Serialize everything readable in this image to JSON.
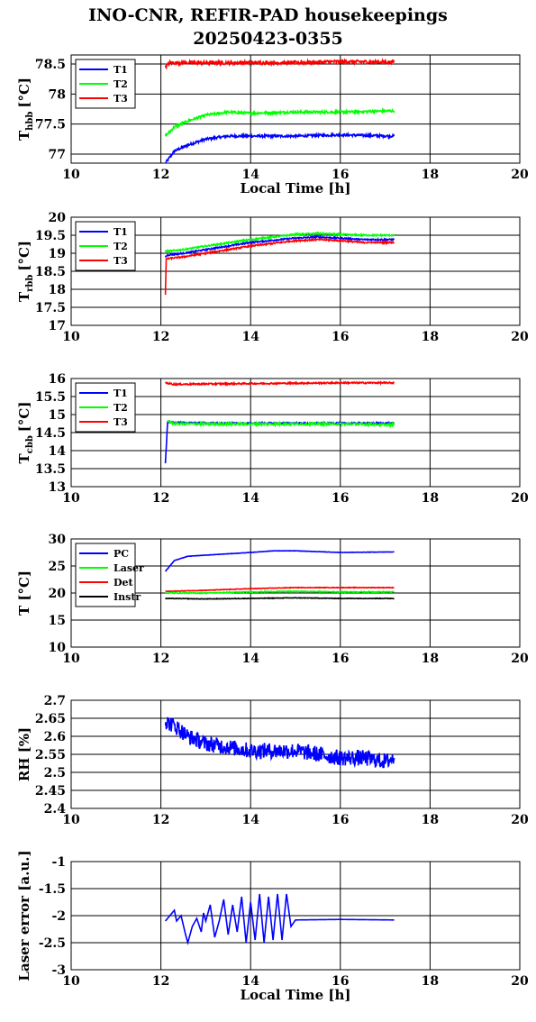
{
  "figure": {
    "title_line1": "INO-CNR, REFIR-PAD housekeepings",
    "title_line2": "20250423-0355"
  },
  "colors": {
    "blue": "#0000ff",
    "green": "#00ff00",
    "red": "#ff0000",
    "black": "#000000",
    "grid": "#000000"
  },
  "chart_data": [
    {
      "type": "line",
      "ylabel_main": "T",
      "ylabel_sub": "hbb",
      "ylabel_unit": "[°C]",
      "xlabel": "Local Time [h]",
      "xlim": [
        10,
        20
      ],
      "ylim": [
        76.85,
        78.65
      ],
      "xticks": [
        10,
        12,
        14,
        16,
        18,
        20
      ],
      "yticks": [
        77,
        77.5,
        78,
        78.5
      ],
      "ytick_labels": [
        "77",
        "77.5",
        "78",
        "78.5"
      ],
      "grid": true,
      "legend": "top-left",
      "series": [
        {
          "name": "T1",
          "color": "blue",
          "noise": 0.02,
          "x": [
            12.1,
            12.3,
            12.6,
            13.0,
            13.5,
            14.0,
            15.0,
            16.0,
            17.2
          ],
          "y": [
            76.85,
            77.05,
            77.15,
            77.25,
            77.3,
            77.3,
            77.3,
            77.32,
            77.3
          ]
        },
        {
          "name": "T2",
          "color": "green",
          "noise": 0.02,
          "x": [
            12.1,
            12.3,
            12.6,
            13.0,
            13.5,
            14.0,
            15.0,
            16.0,
            17.2
          ],
          "y": [
            77.3,
            77.45,
            77.55,
            77.65,
            77.7,
            77.68,
            77.7,
            77.7,
            77.72
          ]
        },
        {
          "name": "T3",
          "color": "red",
          "noise": 0.03,
          "x": [
            12.1,
            12.2,
            13.0,
            14.0,
            15.0,
            16.0,
            17.2
          ],
          "y": [
            78.45,
            78.52,
            78.52,
            78.52,
            78.52,
            78.54,
            78.53
          ]
        }
      ]
    },
    {
      "type": "line",
      "ylabel_main": "T",
      "ylabel_sub": "rbb",
      "ylabel_unit": "[°C]",
      "xlabel": "",
      "xlim": [
        10,
        20
      ],
      "ylim": [
        17,
        20
      ],
      "xticks": [
        10,
        12,
        14,
        16,
        18,
        20
      ],
      "yticks": [
        17,
        17.5,
        18,
        18.5,
        19,
        19.5,
        20
      ],
      "ytick_labels": [
        "17",
        "17.5",
        "18",
        "18.5",
        "19",
        "19.5",
        "20"
      ],
      "grid": true,
      "legend": "top-left",
      "series": [
        {
          "name": "T1",
          "color": "blue",
          "noise": 0.02,
          "x": [
            12.1,
            12.15,
            12.5,
            13.0,
            14.0,
            15.0,
            15.5,
            16.0,
            16.5,
            17.2
          ],
          "y": [
            18.9,
            18.95,
            19.0,
            19.1,
            19.3,
            19.42,
            19.45,
            19.42,
            19.38,
            19.38
          ]
        },
        {
          "name": "T2",
          "color": "green",
          "noise": 0.02,
          "x": [
            12.1,
            12.5,
            13.0,
            14.0,
            15.0,
            15.5,
            16.0,
            16.5,
            17.2
          ],
          "y": [
            19.05,
            19.1,
            19.2,
            19.38,
            19.52,
            19.55,
            19.52,
            19.5,
            19.5
          ]
        },
        {
          "name": "T3",
          "color": "red",
          "noise": 0.02,
          "x": [
            12.1,
            12.12,
            12.15,
            12.5,
            13.0,
            14.0,
            15.0,
            15.5,
            16.0,
            16.5,
            17.2
          ],
          "y": [
            17.85,
            18.85,
            18.85,
            18.9,
            19.0,
            19.2,
            19.35,
            19.38,
            19.35,
            19.3,
            19.3
          ]
        }
      ]
    },
    {
      "type": "line",
      "ylabel_main": "T",
      "ylabel_sub": "cbb",
      "ylabel_unit": "[°C]",
      "xlabel": "",
      "xlim": [
        10,
        20
      ],
      "ylim": [
        13,
        16
      ],
      "xticks": [
        10,
        12,
        14,
        16,
        18,
        20
      ],
      "yticks": [
        13,
        13.5,
        14,
        14.5,
        15,
        15.5,
        16
      ],
      "ytick_labels": [
        "13",
        "13.5",
        "14",
        "14.5",
        "15",
        "15.5",
        "16"
      ],
      "grid": true,
      "legend": "top-left",
      "series": [
        {
          "name": "T1",
          "color": "blue",
          "noise": 0.02,
          "x": [
            12.1,
            12.15,
            12.3,
            13.0,
            14.0,
            15.0,
            16.0,
            17.2
          ],
          "y": [
            13.65,
            14.8,
            14.78,
            14.76,
            14.76,
            14.76,
            14.76,
            14.76
          ]
        },
        {
          "name": "T2",
          "color": "green",
          "noise": 0.03,
          "x": [
            12.15,
            12.3,
            13.0,
            14.0,
            15.0,
            16.0,
            17.2
          ],
          "y": [
            14.82,
            14.75,
            14.74,
            14.74,
            14.74,
            14.74,
            14.72
          ]
        },
        {
          "name": "T3",
          "color": "red",
          "noise": 0.02,
          "x": [
            12.1,
            12.3,
            13.0,
            14.0,
            15.0,
            16.0,
            17.2
          ],
          "y": [
            15.88,
            15.84,
            15.85,
            15.86,
            15.87,
            15.88,
            15.88
          ]
        }
      ]
    },
    {
      "type": "line",
      "ylabel_main": "T [°C]",
      "ylabel_sub": "",
      "ylabel_unit": "",
      "xlabel": "",
      "xlim": [
        10,
        20
      ],
      "ylim": [
        10,
        30
      ],
      "xticks": [
        10,
        12,
        14,
        16,
        18,
        20
      ],
      "yticks": [
        10,
        15,
        20,
        25,
        30
      ],
      "ytick_labels": [
        "10",
        "15",
        "20",
        "25",
        "30"
      ],
      "grid": true,
      "legend": "top-left",
      "series": [
        {
          "name": "PC",
          "color": "blue",
          "noise": 0.03,
          "x": [
            12.1,
            12.3,
            12.6,
            13.0,
            14.0,
            14.5,
            15.0,
            16.0,
            17.2
          ],
          "y": [
            24.0,
            26.0,
            26.8,
            27.0,
            27.5,
            27.8,
            27.8,
            27.5,
            27.6
          ]
        },
        {
          "name": "Laser",
          "color": "green",
          "noise": 0.08,
          "x": [
            12.1,
            13.0,
            14.0,
            15.0,
            16.0,
            17.2
          ],
          "y": [
            20.0,
            20.0,
            20.2,
            20.3,
            20.2,
            20.2
          ]
        },
        {
          "name": "Det",
          "color": "red",
          "noise": 0.05,
          "x": [
            12.1,
            13.0,
            14.0,
            15.0,
            16.0,
            17.2
          ],
          "y": [
            20.3,
            20.5,
            20.8,
            21.0,
            21.0,
            21.0
          ]
        },
        {
          "name": "Instr",
          "color": "black",
          "noise": 0.05,
          "x": [
            12.1,
            13.0,
            14.0,
            15.0,
            16.0,
            17.2
          ],
          "y": [
            19.0,
            18.9,
            19.0,
            19.1,
            19.0,
            19.0
          ]
        }
      ]
    },
    {
      "type": "line",
      "ylabel_main": "RH [%]",
      "ylabel_sub": "",
      "ylabel_unit": "",
      "xlabel": "",
      "xlim": [
        10,
        20
      ],
      "ylim": [
        2.4,
        2.7
      ],
      "xticks": [
        10,
        12,
        14,
        16,
        18,
        20
      ],
      "yticks": [
        2.4,
        2.45,
        2.5,
        2.55,
        2.6,
        2.65,
        2.7
      ],
      "ytick_labels": [
        "2.4",
        "2.45",
        "2.5",
        "2.55",
        "2.6",
        "2.65",
        "2.7"
      ],
      "grid": true,
      "legend": "none",
      "series": [
        {
          "color": "blue",
          "noise": 0.022,
          "x": [
            12.1,
            12.3,
            12.6,
            13.0,
            13.5,
            14.0,
            14.5,
            15.0,
            15.5,
            16.0,
            16.5,
            17.0,
            17.2
          ],
          "y": [
            2.64,
            2.63,
            2.6,
            2.58,
            2.57,
            2.56,
            2.56,
            2.56,
            2.55,
            2.54,
            2.54,
            2.53,
            2.54
          ]
        }
      ]
    },
    {
      "type": "line",
      "ylabel_main": "Laser error [a.u.]",
      "ylabel_sub": "",
      "ylabel_unit": "",
      "xlabel": "Local Time [h]",
      "xlim": [
        10,
        20
      ],
      "ylim": [
        -3,
        -1
      ],
      "xticks": [
        10,
        12,
        14,
        16,
        18,
        20
      ],
      "yticks": [
        -3,
        -2.5,
        -2,
        -1.5,
        -1
      ],
      "ytick_labels": [
        "-3",
        "-2.5",
        "-2",
        "-1.5",
        "-1"
      ],
      "grid": true,
      "legend": "none",
      "series": [
        {
          "color": "blue",
          "noise": 0.0,
          "x": [
            12.1,
            12.2,
            12.3,
            12.35,
            12.45,
            12.55,
            12.6,
            12.7,
            12.8,
            12.9,
            12.95,
            13.0,
            13.1,
            13.2,
            13.3,
            13.4,
            13.5,
            13.6,
            13.7,
            13.8,
            13.9,
            14.0,
            14.1,
            14.2,
            14.3,
            14.4,
            14.5,
            14.6,
            14.7,
            14.8,
            14.9,
            15.0,
            16.0,
            17.2
          ],
          "y": [
            -2.1,
            -2.0,
            -1.9,
            -2.1,
            -2.0,
            -2.35,
            -2.5,
            -2.2,
            -2.05,
            -2.3,
            -1.95,
            -2.1,
            -1.8,
            -2.4,
            -2.1,
            -1.7,
            -2.35,
            -1.8,
            -2.3,
            -1.65,
            -2.5,
            -1.75,
            -2.45,
            -1.6,
            -2.5,
            -1.65,
            -2.45,
            -1.6,
            -2.45,
            -1.6,
            -2.2,
            -2.08,
            -2.07,
            -2.08
          ]
        }
      ]
    }
  ]
}
